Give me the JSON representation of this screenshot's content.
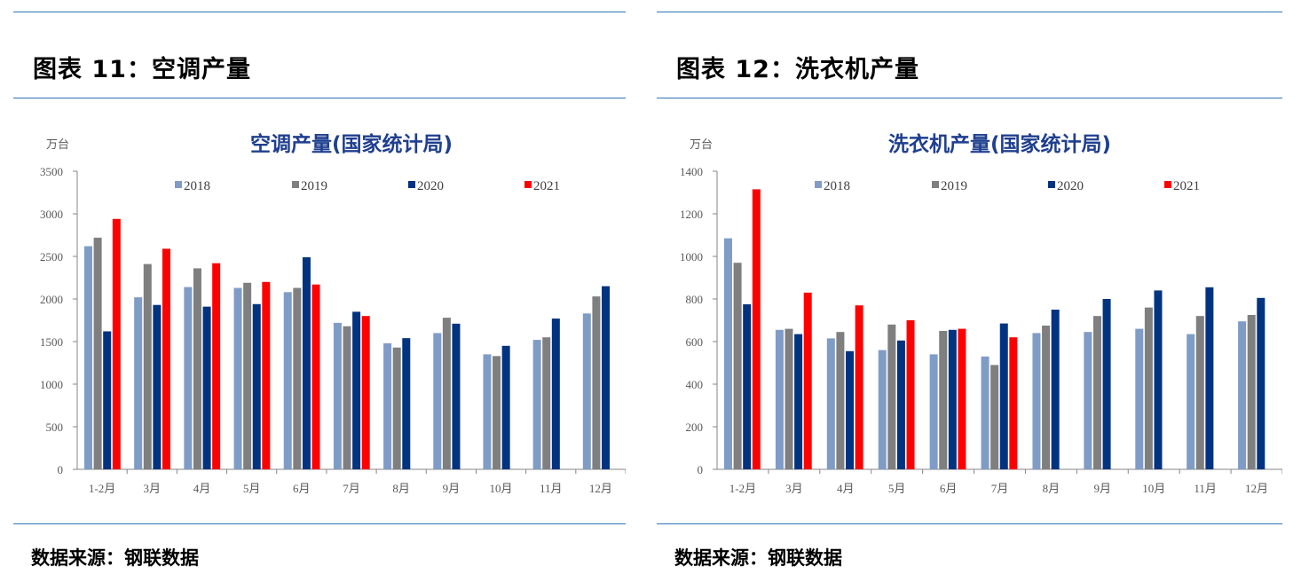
{
  "panels": [
    {
      "heading": "图表 11：空调产量",
      "source": "数据来源：钢联数据"
    },
    {
      "heading": "图表 12：洗衣机产量",
      "source": "数据来源：钢联数据"
    }
  ],
  "chart_data": [
    {
      "type": "bar",
      "title": "空调产量(国家统计局)",
      "ylabel": "万台",
      "ylim": [
        0,
        3500
      ],
      "yticks": [
        0,
        500,
        1000,
        1500,
        2000,
        2500,
        3000,
        3500
      ],
      "grid": false,
      "legend": "top",
      "categories": [
        "1-2月",
        "3月",
        "4月",
        "5月",
        "6月",
        "7月",
        "8月",
        "9月",
        "10月",
        "11月",
        "12月"
      ],
      "series": [
        {
          "name": "2018",
          "color": "#7f9cc6",
          "values": [
            2620,
            2020,
            2140,
            2130,
            2080,
            1720,
            1480,
            1600,
            1350,
            1520,
            1830
          ]
        },
        {
          "name": "2019",
          "color": "#7f7f7f",
          "values": [
            2720,
            2410,
            2360,
            2190,
            2130,
            1680,
            1430,
            1780,
            1330,
            1550,
            2030
          ]
        },
        {
          "name": "2020",
          "color": "#003380",
          "values": [
            1620,
            1930,
            1910,
            1940,
            2490,
            1850,
            1540,
            1710,
            1450,
            1770,
            2150
          ]
        },
        {
          "name": "2021",
          "color": "#ff0000",
          "values": [
            2940,
            2590,
            2420,
            2200,
            2170,
            1800,
            null,
            null,
            null,
            null,
            null
          ]
        }
      ]
    },
    {
      "type": "bar",
      "title": "洗衣机产量(国家统计局)",
      "ylabel": "万台",
      "ylim": [
        0,
        1400
      ],
      "yticks": [
        0,
        200,
        400,
        600,
        800,
        1000,
        1200,
        1400
      ],
      "grid": false,
      "legend": "top",
      "categories": [
        "1-2月",
        "3月",
        "4月",
        "5月",
        "6月",
        "7月",
        "8月",
        "9月",
        "10月",
        "11月",
        "12月"
      ],
      "series": [
        {
          "name": "2018",
          "color": "#7f9cc6",
          "values": [
            1085,
            655,
            615,
            560,
            540,
            530,
            640,
            645,
            660,
            635,
            695
          ]
        },
        {
          "name": "2019",
          "color": "#7f7f7f",
          "values": [
            970,
            660,
            645,
            680,
            650,
            490,
            675,
            720,
            760,
            720,
            725
          ]
        },
        {
          "name": "2020",
          "color": "#003380",
          "values": [
            775,
            635,
            555,
            605,
            655,
            685,
            750,
            800,
            840,
            855,
            805
          ]
        },
        {
          "name": "2021",
          "color": "#ff0000",
          "values": [
            1315,
            830,
            770,
            700,
            660,
            620,
            null,
            null,
            null,
            null,
            null
          ]
        }
      ]
    }
  ]
}
